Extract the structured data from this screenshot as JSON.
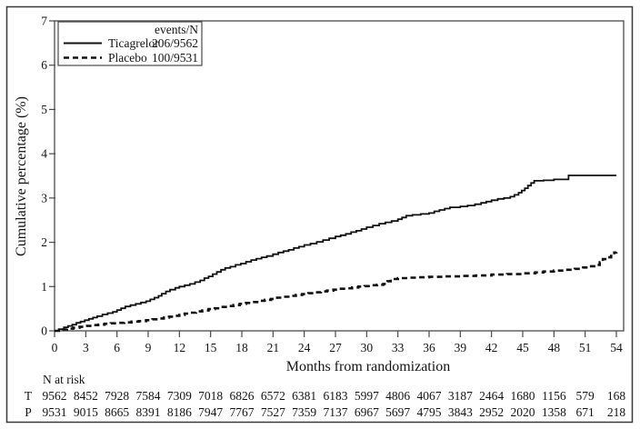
{
  "figure": {
    "border_color": "#3a3a3a",
    "frame_color": "#4a4a4a",
    "line_color": "#111111"
  },
  "chart_data": {
    "type": "line",
    "subtype": "kaplan-meier-cumulative-incidence-step",
    "title": "",
    "xlabel": "Months from randomization",
    "ylabel": "Cumulative percentage (%)",
    "xlim": [
      0,
      54
    ],
    "ylim": [
      0,
      7
    ],
    "grid": "off",
    "legend_position": "top-left-inside",
    "x_ticks": [
      0,
      3,
      6,
      9,
      12,
      15,
      18,
      21,
      24,
      27,
      30,
      33,
      36,
      39,
      42,
      45,
      48,
      51,
      54
    ],
    "y_ticks": [
      0,
      1,
      2,
      3,
      4,
      5,
      6,
      7
    ],
    "legend": {
      "header": "events/N",
      "entries": [
        {
          "label": "Ticagrelor",
          "events_n": "206/9562",
          "style": "solid"
        },
        {
          "label": "Placebo",
          "events_n": "100/9531",
          "style": "dashed"
        }
      ]
    },
    "series": [
      {
        "name": "Ticagrelor",
        "style": "solid",
        "points": [
          [
            0,
            0
          ],
          [
            0.4,
            0.04
          ],
          [
            0.9,
            0.08
          ],
          [
            1.3,
            0.11
          ],
          [
            1.7,
            0.14
          ],
          [
            2.1,
            0.18
          ],
          [
            2.5,
            0.21
          ],
          [
            2.9,
            0.24
          ],
          [
            3.3,
            0.27
          ],
          [
            3.7,
            0.3
          ],
          [
            4.1,
            0.33
          ],
          [
            4.6,
            0.37
          ],
          [
            5.1,
            0.4
          ],
          [
            5.6,
            0.43
          ],
          [
            6.0,
            0.47
          ],
          [
            6.4,
            0.51
          ],
          [
            6.8,
            0.55
          ],
          [
            7.3,
            0.58
          ],
          [
            7.8,
            0.61
          ],
          [
            8.3,
            0.64
          ],
          [
            8.8,
            0.67
          ],
          [
            9.2,
            0.71
          ],
          [
            9.6,
            0.75
          ],
          [
            10.0,
            0.79
          ],
          [
            10.3,
            0.84
          ],
          [
            10.7,
            0.89
          ],
          [
            11.1,
            0.93
          ],
          [
            11.6,
            0.97
          ],
          [
            12.0,
            1.0
          ],
          [
            12.5,
            1.03
          ],
          [
            13.0,
            1.06
          ],
          [
            13.5,
            1.1
          ],
          [
            14.0,
            1.14
          ],
          [
            14.4,
            1.19
          ],
          [
            14.8,
            1.23
          ],
          [
            15.2,
            1.28
          ],
          [
            15.6,
            1.33
          ],
          [
            16.0,
            1.38
          ],
          [
            16.4,
            1.42
          ],
          [
            16.9,
            1.45
          ],
          [
            17.4,
            1.49
          ],
          [
            17.9,
            1.52
          ],
          [
            18.4,
            1.56
          ],
          [
            18.9,
            1.6
          ],
          [
            19.4,
            1.63
          ],
          [
            19.9,
            1.66
          ],
          [
            20.4,
            1.69
          ],
          [
            21.0,
            1.73
          ],
          [
            21.5,
            1.77
          ],
          [
            22.0,
            1.8
          ],
          [
            22.5,
            1.83
          ],
          [
            23.0,
            1.87
          ],
          [
            23.5,
            1.9
          ],
          [
            24.0,
            1.94
          ],
          [
            24.6,
            1.97
          ],
          [
            25.2,
            2.01
          ],
          [
            25.8,
            2.05
          ],
          [
            26.4,
            2.09
          ],
          [
            27.0,
            2.13
          ],
          [
            27.5,
            2.16
          ],
          [
            28.0,
            2.19
          ],
          [
            28.5,
            2.23
          ],
          [
            29.0,
            2.26
          ],
          [
            29.5,
            2.3
          ],
          [
            30.0,
            2.34
          ],
          [
            30.6,
            2.38
          ],
          [
            31.2,
            2.42
          ],
          [
            31.8,
            2.45
          ],
          [
            32.4,
            2.48
          ],
          [
            33.0,
            2.52
          ],
          [
            33.4,
            2.56
          ],
          [
            33.8,
            2.6
          ],
          [
            34.4,
            2.62
          ],
          [
            35.2,
            2.64
          ],
          [
            36.0,
            2.66
          ],
          [
            36.5,
            2.7
          ],
          [
            37.0,
            2.73
          ],
          [
            37.5,
            2.76
          ],
          [
            38.0,
            2.79
          ],
          [
            39.0,
            2.81
          ],
          [
            39.7,
            2.83
          ],
          [
            40.4,
            2.86
          ],
          [
            41.0,
            2.89
          ],
          [
            41.5,
            2.92
          ],
          [
            42.0,
            2.95
          ],
          [
            42.6,
            2.98
          ],
          [
            43.2,
            3.0
          ],
          [
            43.8,
            3.03
          ],
          [
            44.2,
            3.07
          ],
          [
            44.6,
            3.12
          ],
          [
            44.9,
            3.17
          ],
          [
            45.2,
            3.22
          ],
          [
            45.5,
            3.28
          ],
          [
            45.8,
            3.34
          ],
          [
            46.1,
            3.39
          ],
          [
            47.0,
            3.4
          ],
          [
            48.0,
            3.42
          ],
          [
            49.3,
            3.42
          ],
          [
            49.4,
            3.51
          ],
          [
            54,
            3.51
          ]
        ]
      },
      {
        "name": "Placebo",
        "style": "dashed",
        "points": [
          [
            0,
            0
          ],
          [
            0.6,
            0.03
          ],
          [
            1.2,
            0.05
          ],
          [
            1.8,
            0.07
          ],
          [
            2.4,
            0.09
          ],
          [
            3.0,
            0.11
          ],
          [
            3.6,
            0.13
          ],
          [
            4.2,
            0.14
          ],
          [
            4.8,
            0.16
          ],
          [
            5.4,
            0.17
          ],
          [
            6.0,
            0.18
          ],
          [
            6.7,
            0.19
          ],
          [
            7.4,
            0.21
          ],
          [
            8.1,
            0.22
          ],
          [
            8.8,
            0.24
          ],
          [
            9.4,
            0.26
          ],
          [
            10.0,
            0.28
          ],
          [
            10.5,
            0.3
          ],
          [
            11.0,
            0.32
          ],
          [
            11.5,
            0.34
          ],
          [
            12.0,
            0.36
          ],
          [
            12.5,
            0.39
          ],
          [
            13.0,
            0.41
          ],
          [
            13.6,
            0.44
          ],
          [
            14.2,
            0.46
          ],
          [
            14.8,
            0.49
          ],
          [
            15.4,
            0.51
          ],
          [
            16.0,
            0.54
          ],
          [
            16.6,
            0.56
          ],
          [
            17.2,
            0.58
          ],
          [
            17.8,
            0.61
          ],
          [
            18.4,
            0.63
          ],
          [
            19.0,
            0.65
          ],
          [
            19.6,
            0.68
          ],
          [
            20.2,
            0.7
          ],
          [
            20.8,
            0.72
          ],
          [
            21.4,
            0.75
          ],
          [
            22.0,
            0.77
          ],
          [
            22.6,
            0.79
          ],
          [
            23.2,
            0.81
          ],
          [
            23.8,
            0.83
          ],
          [
            24.4,
            0.85
          ],
          [
            25.0,
            0.87
          ],
          [
            25.6,
            0.89
          ],
          [
            26.2,
            0.91
          ],
          [
            26.8,
            0.93
          ],
          [
            27.4,
            0.95
          ],
          [
            28.0,
            0.96
          ],
          [
            28.6,
            0.98
          ],
          [
            29.2,
            1.0
          ],
          [
            29.8,
            1.01
          ],
          [
            30.4,
            1.03
          ],
          [
            31.0,
            1.04
          ],
          [
            31.6,
            1.06
          ],
          [
            32.0,
            1.12
          ],
          [
            32.3,
            1.17
          ],
          [
            33.0,
            1.19
          ],
          [
            34.0,
            1.2
          ],
          [
            35.0,
            1.21
          ],
          [
            36.0,
            1.22
          ],
          [
            37.5,
            1.23
          ],
          [
            39.0,
            1.24
          ],
          [
            40.5,
            1.25
          ],
          [
            42.0,
            1.27
          ],
          [
            43.5,
            1.28
          ],
          [
            45.0,
            1.3
          ],
          [
            46.2,
            1.32
          ],
          [
            47.0,
            1.34
          ],
          [
            48.0,
            1.36
          ],
          [
            49.0,
            1.38
          ],
          [
            50.0,
            1.4
          ],
          [
            50.8,
            1.43
          ],
          [
            51.4,
            1.46
          ],
          [
            52.0,
            1.49
          ],
          [
            52.4,
            1.55
          ],
          [
            52.7,
            1.62
          ],
          [
            53.1,
            1.66
          ],
          [
            53.5,
            1.72
          ],
          [
            53.8,
            1.77
          ],
          [
            54,
            1.78
          ]
        ]
      }
    ],
    "risk_table": {
      "title": "N at risk",
      "rows": [
        {
          "label": "T",
          "values": [
            9562,
            8452,
            7928,
            7584,
            7309,
            7018,
            6826,
            6572,
            6381,
            6183,
            5997,
            4806,
            4067,
            3187,
            2464,
            1680,
            1156,
            579,
            168
          ]
        },
        {
          "label": "P",
          "values": [
            9531,
            9015,
            8665,
            8391,
            8186,
            7947,
            7767,
            7527,
            7359,
            7137,
            6967,
            5697,
            4795,
            3843,
            2952,
            2020,
            1358,
            671,
            218
          ]
        }
      ]
    }
  }
}
